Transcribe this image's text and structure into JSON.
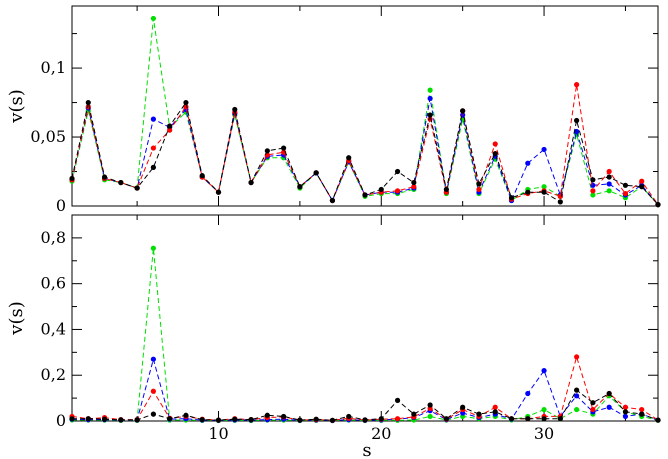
{
  "chart_data": [
    {
      "type": "line",
      "xlabel": "",
      "ylabel": "v(s)",
      "xlim": [
        1,
        37
      ],
      "ylim": [
        0,
        0.145
      ],
      "xticks": [
        10,
        20,
        30
      ],
      "xtick_labels": [
        "",
        "",
        ""
      ],
      "yticks": [
        0,
        0.05,
        0.1
      ],
      "ytick_labels": [
        "0",
        "0,05",
        "0,1"
      ],
      "line_style": "dashed",
      "x": [
        1,
        2,
        3,
        4,
        5,
        6,
        7,
        8,
        9,
        10,
        11,
        12,
        13,
        14,
        15,
        16,
        17,
        18,
        19,
        20,
        21,
        22,
        23,
        24,
        25,
        26,
        27,
        28,
        29,
        30,
        31,
        32,
        33,
        34,
        35,
        36,
        37
      ],
      "series": [
        {
          "color": "#00e000",
          "values": [
            0.018,
            0.069,
            0.019,
            0.017,
            0.013,
            0.136,
            0.057,
            0.068,
            0.021,
            0.01,
            0.066,
            0.017,
            0.035,
            0.035,
            0.013,
            0.024,
            0.004,
            0.032,
            0.007,
            0.009,
            0.009,
            0.012,
            0.084,
            0.009,
            0.063,
            0.009,
            0.034,
            0.004,
            0.012,
            0.014,
            0.007,
            0.052,
            0.008,
            0.011,
            0.006,
            0.014,
            0.001
          ]
        },
        {
          "color": "#0000ff",
          "values": [
            0.019,
            0.071,
            0.02,
            0.017,
            0.013,
            0.063,
            0.057,
            0.07,
            0.021,
            0.01,
            0.067,
            0.017,
            0.036,
            0.037,
            0.014,
            0.024,
            0.004,
            0.032,
            0.008,
            0.01,
            0.01,
            0.013,
            0.078,
            0.01,
            0.066,
            0.01,
            0.036,
            0.004,
            0.031,
            0.041,
            0.008,
            0.054,
            0.015,
            0.016,
            0.008,
            0.015,
            0.001
          ]
        },
        {
          "color": "#ff0000",
          "values": [
            0.019,
            0.072,
            0.02,
            0.017,
            0.013,
            0.042,
            0.055,
            0.072,
            0.021,
            0.01,
            0.068,
            0.017,
            0.037,
            0.039,
            0.014,
            0.024,
            0.004,
            0.033,
            0.008,
            0.01,
            0.011,
            0.014,
            0.063,
            0.01,
            0.069,
            0.012,
            0.045,
            0.005,
            0.009,
            0.011,
            0.007,
            0.088,
            0.011,
            0.025,
            0.009,
            0.018,
            0.001
          ]
        },
        {
          "color": "#000000",
          "values": [
            0.02,
            0.075,
            0.021,
            0.017,
            0.013,
            0.028,
            0.058,
            0.075,
            0.022,
            0.01,
            0.07,
            0.017,
            0.04,
            0.042,
            0.014,
            0.024,
            0.004,
            0.035,
            0.008,
            0.012,
            0.025,
            0.017,
            0.066,
            0.012,
            0.069,
            0.016,
            0.038,
            0.006,
            0.01,
            0.01,
            0.003,
            0.062,
            0.019,
            0.021,
            0.015,
            0.014,
            0.001
          ]
        }
      ]
    },
    {
      "type": "line",
      "xlabel": "s",
      "ylabel": "v(s)",
      "xlim": [
        1,
        37
      ],
      "ylim": [
        0,
        0.9
      ],
      "xticks": [
        10,
        20,
        30
      ],
      "xtick_labels": [
        "10",
        "20",
        "30"
      ],
      "yticks": [
        0,
        0.2,
        0.4,
        0.6,
        0.8
      ],
      "ytick_labels": [
        "0",
        "0,2",
        "0,4",
        "0,6",
        "0,8"
      ],
      "line_style": "dashed",
      "x": [
        1,
        2,
        3,
        4,
        5,
        6,
        7,
        8,
        9,
        10,
        11,
        12,
        13,
        14,
        15,
        16,
        17,
        18,
        19,
        20,
        21,
        22,
        23,
        24,
        25,
        26,
        27,
        28,
        29,
        30,
        31,
        32,
        33,
        34,
        35,
        36,
        37
      ],
      "series": [
        {
          "color": "#00e000",
          "values": [
            0.005,
            0.004,
            0.004,
            0.003,
            0.003,
            0.755,
            0.004,
            0.004,
            0.003,
            0.002,
            0.003,
            0.002,
            0.004,
            0.004,
            0.002,
            0.003,
            0.002,
            0.004,
            0.002,
            0.003,
            0.003,
            0.004,
            0.02,
            0.004,
            0.02,
            0.01,
            0.02,
            0.005,
            0.02,
            0.05,
            0.01,
            0.05,
            0.03,
            0.11,
            0.04,
            0.02,
            0.003
          ]
        },
        {
          "color": "#0000ff",
          "values": [
            0.008,
            0.006,
            0.006,
            0.004,
            0.004,
            0.27,
            0.008,
            0.01,
            0.004,
            0.003,
            0.005,
            0.004,
            0.006,
            0.008,
            0.003,
            0.004,
            0.002,
            0.006,
            0.003,
            0.005,
            0.008,
            0.015,
            0.045,
            0.006,
            0.035,
            0.015,
            0.03,
            0.008,
            0.12,
            0.22,
            0.02,
            0.11,
            0.04,
            0.06,
            0.02,
            0.03,
            0.004
          ]
        },
        {
          "color": "#ff0000",
          "values": [
            0.02,
            0.01,
            0.015,
            0.006,
            0.006,
            0.13,
            0.012,
            0.02,
            0.008,
            0.004,
            0.01,
            0.006,
            0.015,
            0.018,
            0.004,
            0.006,
            0.003,
            0.012,
            0.004,
            0.008,
            0.01,
            0.018,
            0.055,
            0.008,
            0.05,
            0.02,
            0.06,
            0.01,
            0.01,
            0.02,
            0.02,
            0.28,
            0.05,
            0.12,
            0.06,
            0.05,
            0.004
          ]
        },
        {
          "color": "#000000",
          "values": [
            0.01,
            0.01,
            0.008,
            0.005,
            0.005,
            0.03,
            0.01,
            0.025,
            0.006,
            0.004,
            0.008,
            0.006,
            0.025,
            0.02,
            0.004,
            0.008,
            0.003,
            0.02,
            0.005,
            0.01,
            0.09,
            0.03,
            0.07,
            0.01,
            0.06,
            0.03,
            0.04,
            0.01,
            0.01,
            0.01,
            0.01,
            0.135,
            0.08,
            0.12,
            0.04,
            0.03,
            0.004
          ]
        }
      ]
    }
  ]
}
